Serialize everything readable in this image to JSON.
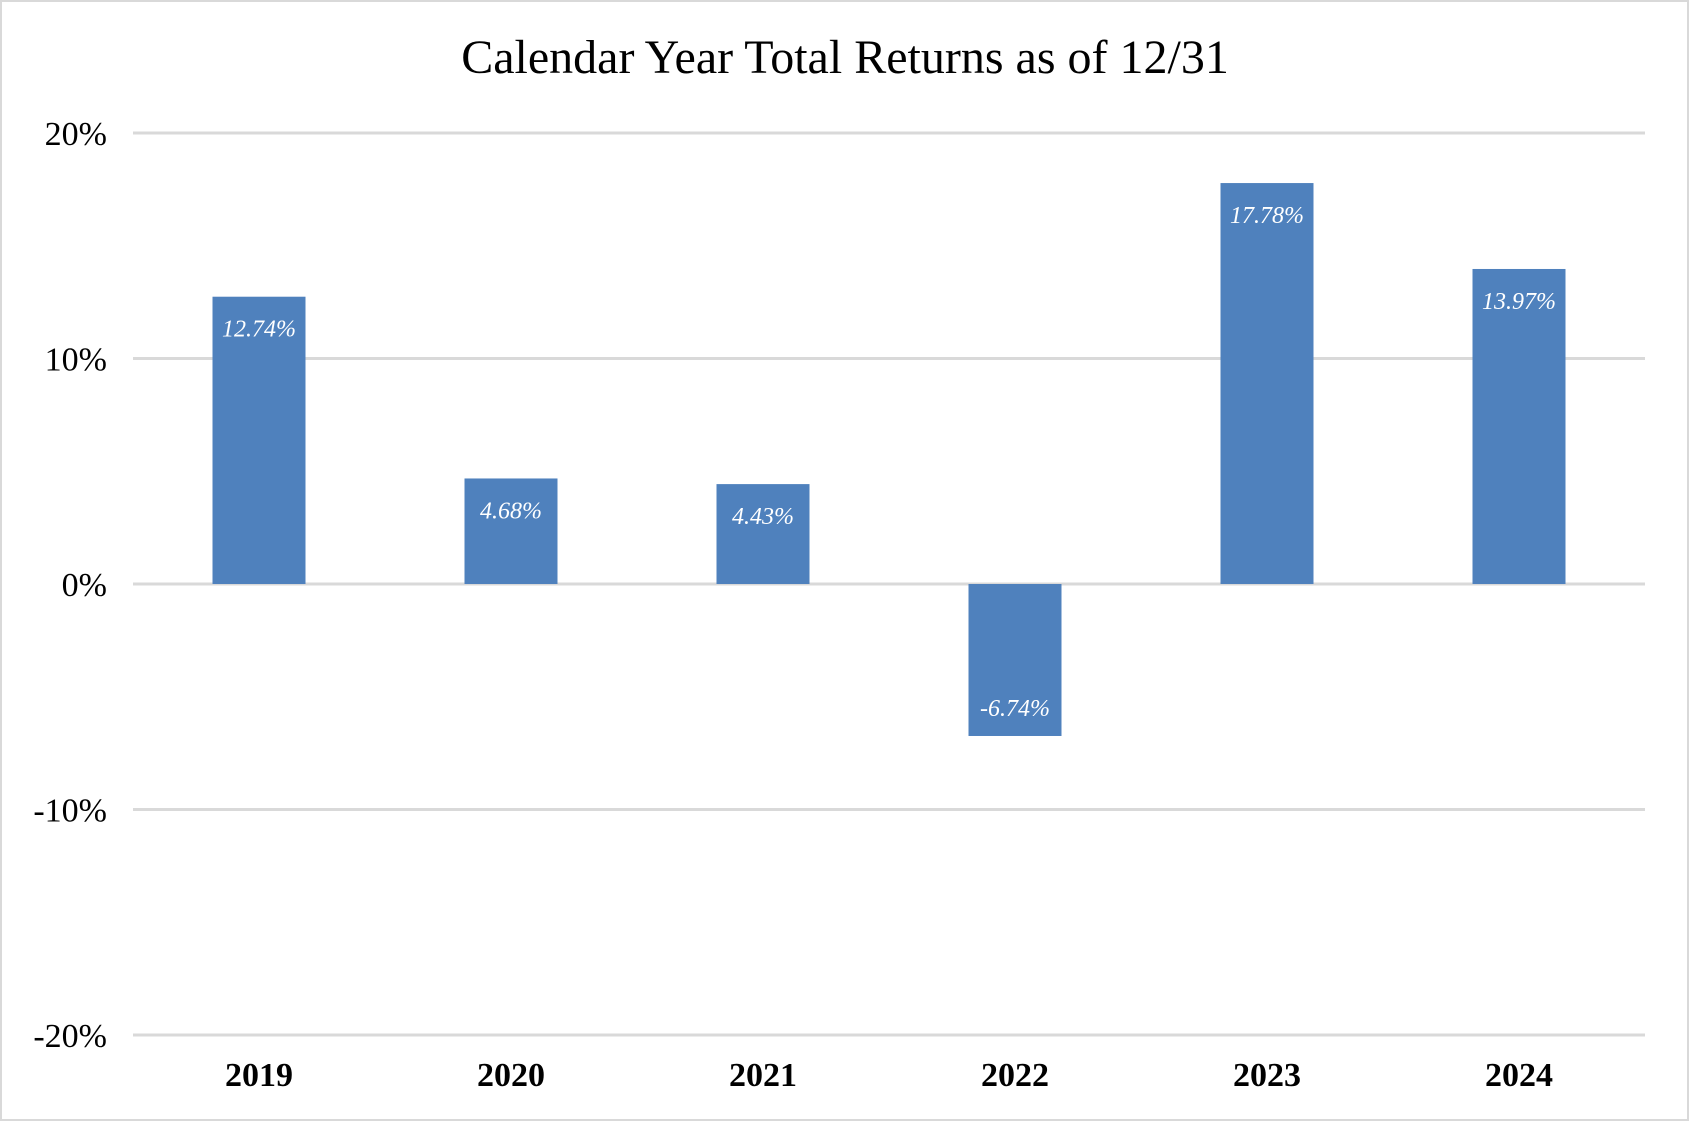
{
  "chart_data": {
    "type": "bar",
    "title": "Calendar Year Total Returns as of 12/31",
    "xlabel": "",
    "ylabel": "",
    "categories": [
      "2019",
      "2020",
      "2021",
      "2022",
      "2023",
      "2024"
    ],
    "values": [
      12.74,
      4.68,
      4.43,
      -6.74,
      17.78,
      13.97
    ],
    "data_labels": [
      "12.74%",
      "4.68%",
      "4.43%",
      "-6.74%",
      "17.78%",
      "13.97%"
    ],
    "ylim": [
      -20,
      20
    ],
    "yticks": [
      20,
      10,
      0,
      -10,
      -20
    ],
    "ytick_labels": [
      "20%",
      "10%",
      "0%",
      "-10%",
      "-20%"
    ],
    "grid": true,
    "legend": "none",
    "colors": {
      "bar": "#4f81bd",
      "grid": "#d9d9d9",
      "label": "#ffffff"
    }
  }
}
